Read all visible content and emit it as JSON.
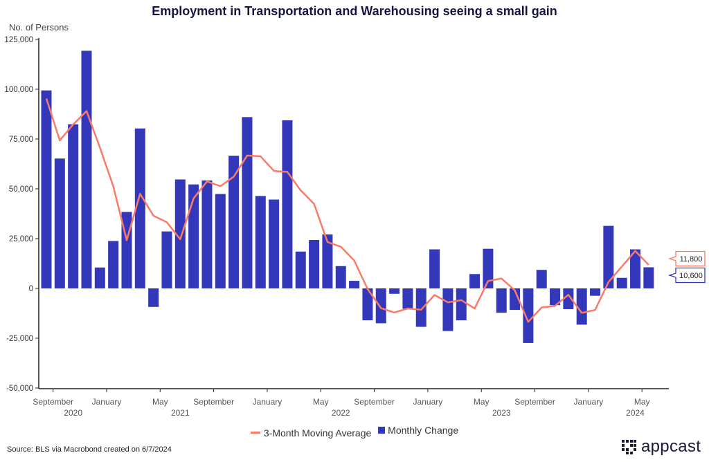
{
  "chart_data": {
    "type": "bar+line",
    "title": "Employment in Transportation and Warehousing seeing a small gain",
    "ylabel": "No. of Persons",
    "xlabel": "",
    "ylim": [
      -50000,
      125000
    ],
    "yticks": [
      125000,
      100000,
      75000,
      50000,
      25000,
      0,
      -25000,
      -50000
    ],
    "ytick_labels": [
      "125,000",
      "100,000",
      "75,000",
      "50,000",
      "25,000",
      "0",
      "-25,000",
      "-50,000"
    ],
    "months": [
      "2020-08",
      "2020-09",
      "2020-10",
      "2020-11",
      "2020-12",
      "2021-01",
      "2021-02",
      "2021-03",
      "2021-04",
      "2021-05",
      "2021-06",
      "2021-07",
      "2021-08",
      "2021-09",
      "2021-10",
      "2021-11",
      "2021-12",
      "2022-01",
      "2022-02",
      "2022-03",
      "2022-04",
      "2022-05",
      "2022-06",
      "2022-07",
      "2022-08",
      "2022-09",
      "2022-10",
      "2022-11",
      "2022-12",
      "2023-01",
      "2023-02",
      "2023-03",
      "2023-04",
      "2023-05",
      "2023-06",
      "2023-07",
      "2023-08",
      "2023-09",
      "2023-10",
      "2023-11",
      "2023-12",
      "2024-01",
      "2024-02",
      "2024-03",
      "2024-04",
      "2024-05"
    ],
    "xticks": [
      {
        "month_index": 1,
        "label": "September",
        "year": "2020"
      },
      {
        "month_index": 5,
        "label": "January",
        "year": ""
      },
      {
        "month_index": 9,
        "label": "May",
        "year": "2021"
      },
      {
        "month_index": 13,
        "label": "September",
        "year": ""
      },
      {
        "month_index": 17,
        "label": "January",
        "year": ""
      },
      {
        "month_index": 21,
        "label": "May",
        "year": "2022"
      },
      {
        "month_index": 25,
        "label": "September",
        "year": ""
      },
      {
        "month_index": 29,
        "label": "January",
        "year": ""
      },
      {
        "month_index": 33,
        "label": "May",
        "year": "2023"
      },
      {
        "month_index": 37,
        "label": "September",
        "year": ""
      },
      {
        "month_index": 41,
        "label": "January",
        "year": ""
      },
      {
        "month_index": 45,
        "label": "May",
        "year": "2024"
      }
    ],
    "year_labels": [
      {
        "label": "2020",
        "center_month": 2.5
      },
      {
        "label": "2021",
        "center_month": 10.5
      },
      {
        "label": "2022",
        "center_month": 22.5
      },
      {
        "label": "2023",
        "center_month": 34.5
      },
      {
        "label": "2024",
        "center_month": 44.5
      }
    ],
    "series": [
      {
        "name": "Monthly Change",
        "type": "bar",
        "color": "#3338BB",
        "values": [
          99400,
          65200,
          82400,
          119300,
          10500,
          23800,
          38400,
          80300,
          -9300,
          28600,
          54700,
          52200,
          54200,
          47400,
          66600,
          86000,
          46400,
          44600,
          84400,
          18500,
          24300,
          27100,
          11200,
          3800,
          -16000,
          -17500,
          -2700,
          -10200,
          -19300,
          19600,
          -21400,
          -16000,
          7200,
          19900,
          -12200,
          -10800,
          -27400,
          9300,
          -8400,
          -10400,
          -18200,
          -3700,
          31400,
          5300,
          19600,
          10600
        ],
        "last_value_label": "10,600"
      },
      {
        "name": "3-Month Moving Average",
        "type": "line",
        "color": "#F97A68",
        "values": [
          95300,
          74300,
          82300,
          89000,
          70700,
          51200,
          24200,
          47500,
          36500,
          33200,
          24700,
          45200,
          53700,
          51300,
          56100,
          66700,
          66300,
          59000,
          58500,
          49200,
          42400,
          23300,
          20900,
          14000,
          -300,
          -9900,
          -12100,
          -10100,
          -10700,
          -3300,
          -7000,
          -5900,
          -10100,
          3700,
          5000,
          -1000,
          -16800,
          -9600,
          -8800,
          -3200,
          -12300,
          -10800,
          3200,
          11000,
          18800,
          11800
        ],
        "last_value_label": "11,800"
      }
    ],
    "legend": [
      "3-Month Moving Average",
      "Monthly Change"
    ],
    "legend_position": "bottom-center",
    "grid": false
  },
  "source": "Source: BLS via Macrobond created on 6/7/2024",
  "logo_text": "appcast"
}
